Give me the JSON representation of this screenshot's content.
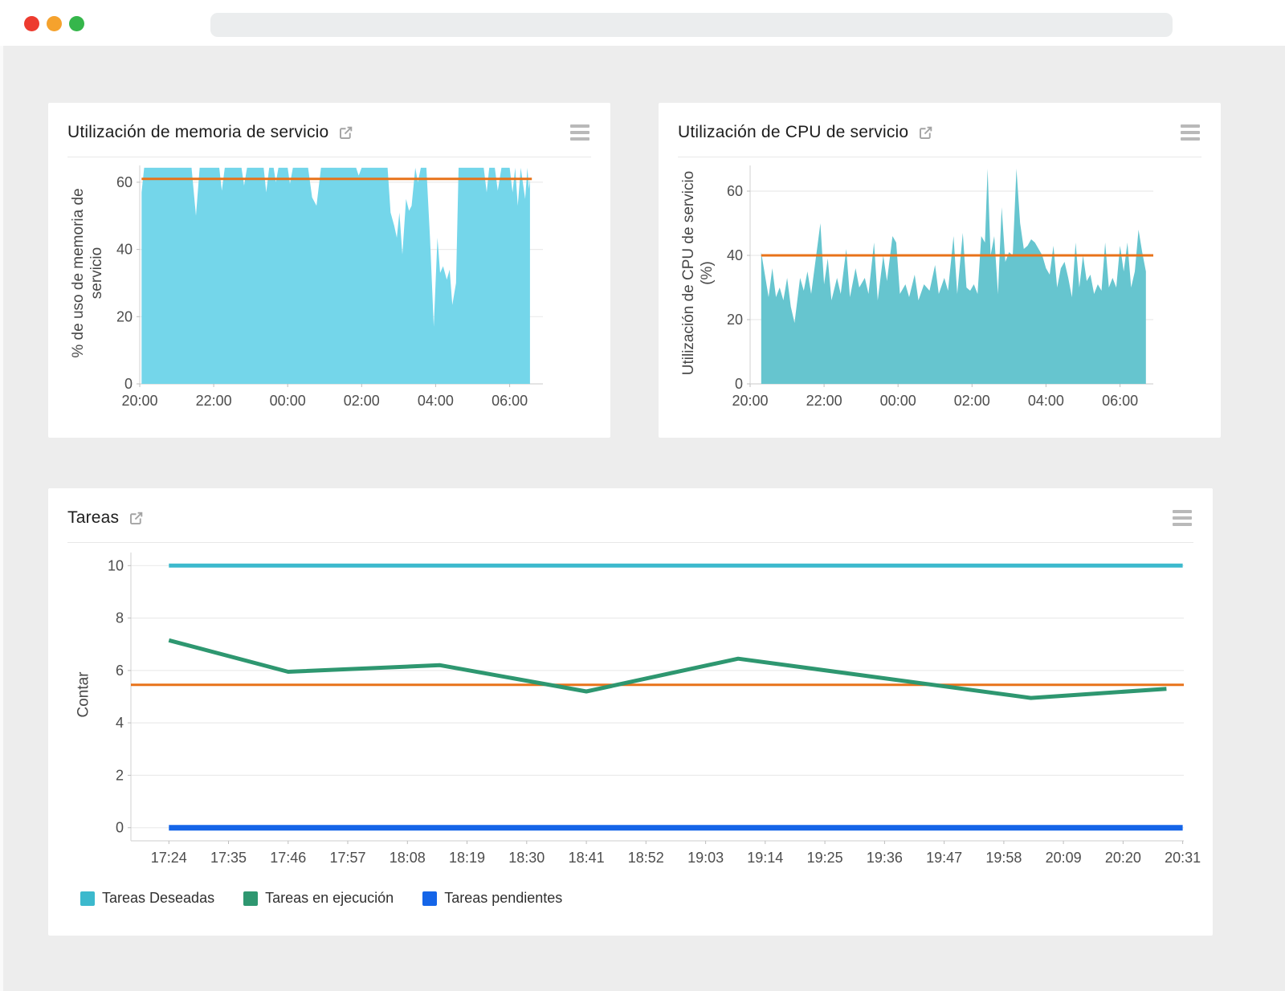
{
  "window": {
    "controls": [
      {
        "name": "close",
        "color": "#ed3b2f"
      },
      {
        "name": "minimize",
        "color": "#f5a22d"
      },
      {
        "name": "zoom",
        "color": "#35b64b"
      }
    ],
    "address_bar_text": ""
  },
  "colors": {
    "page_background": "#ededed",
    "card_background": "#ffffff",
    "threshold_orange": "#e8731a",
    "memory_area_fill": "#74d6ea",
    "cpu_area_fill": "#66c5cf",
    "tareas_deseadas_cyan": "#3cb9cd",
    "tareas_ejecucion_green": "#2e9770",
    "tareas_pendientes_blue": "#1565e8",
    "tick_text": "#4d4d4d",
    "grid_line": "#ebebeb",
    "axis_line": "#d8d8d8"
  },
  "chart_data": [
    {
      "id": "memory",
      "type": "area",
      "title": "Utilización de memoria de servicio",
      "ylabel": "% de uso de memoria de servicio",
      "xlabel": "",
      "x_unit": "hours after 20:00",
      "x_ticks": [
        "20:00",
        "22:00",
        "00:00",
        "02:00",
        "04:00",
        "06:00"
      ],
      "x_tick_values": [
        0,
        2,
        4,
        6,
        8,
        10
      ],
      "x_range": [
        0,
        10.9
      ],
      "y_ticks": [
        0,
        20,
        40,
        60
      ],
      "ylim": [
        0,
        65
      ],
      "grid": true,
      "threshold": 61,
      "threshold_color": "#e8731a",
      "threshold_range": [
        0.05,
        10.6
      ],
      "fill_color": "#74d6ea",
      "series": [
        {
          "points": [
            [
              0.05,
              57
            ],
            [
              0.12,
              64.3
            ],
            [
              1.4,
              64.3
            ],
            [
              1.52,
              50
            ],
            [
              1.62,
              64.3
            ],
            [
              2.15,
              64.3
            ],
            [
              2.22,
              57.5
            ],
            [
              2.3,
              64.3
            ],
            [
              2.75,
              64.3
            ],
            [
              2.82,
              59
            ],
            [
              2.9,
              64.3
            ],
            [
              3.35,
              64.3
            ],
            [
              3.42,
              57
            ],
            [
              3.5,
              64.3
            ],
            [
              3.62,
              64.3
            ],
            [
              3.68,
              60
            ],
            [
              3.75,
              64.3
            ],
            [
              4.0,
              64.3
            ],
            [
              4.06,
              59.5
            ],
            [
              4.14,
              64.3
            ],
            [
              4.55,
              64.3
            ],
            [
              4.66,
              55.5
            ],
            [
              4.78,
              53
            ],
            [
              4.9,
              64.3
            ],
            [
              5.85,
              64.3
            ],
            [
              5.92,
              62
            ],
            [
              6.0,
              64.3
            ],
            [
              6.7,
              64.3
            ],
            [
              6.78,
              51
            ],
            [
              6.88,
              47
            ],
            [
              6.95,
              43.5
            ],
            [
              7.02,
              51
            ],
            [
              7.1,
              38.5
            ],
            [
              7.2,
              55
            ],
            [
              7.28,
              51.5
            ],
            [
              7.35,
              53
            ],
            [
              7.45,
              64.3
            ],
            [
              7.52,
              60
            ],
            [
              7.6,
              64.3
            ],
            [
              7.75,
              64.3
            ],
            [
              7.85,
              43
            ],
            [
              7.95,
              17
            ],
            [
              8.05,
              43.5
            ],
            [
              8.12,
              33
            ],
            [
              8.2,
              35
            ],
            [
              8.3,
              31
            ],
            [
              8.38,
              34
            ],
            [
              8.45,
              23.5
            ],
            [
              8.55,
              30
            ],
            [
              8.62,
              64.3
            ],
            [
              9.3,
              64.3
            ],
            [
              9.38,
              57
            ],
            [
              9.45,
              64.3
            ],
            [
              9.6,
              64.3
            ],
            [
              9.68,
              57.5
            ],
            [
              9.78,
              64.3
            ],
            [
              10.0,
              64.3
            ],
            [
              10.08,
              57
            ],
            [
              10.15,
              64.3
            ],
            [
              10.22,
              53
            ],
            [
              10.3,
              64.3
            ],
            [
              10.42,
              55
            ],
            [
              10.48,
              64.3
            ],
            [
              10.52,
              58
            ],
            [
              10.55,
              61
            ]
          ]
        }
      ]
    },
    {
      "id": "cpu",
      "type": "area",
      "title": "Utilización de CPU de servicio",
      "ylabel": "Utilización de CPU de servicio (%)",
      "xlabel": "",
      "x_unit": "hours after 20:00",
      "x_ticks": [
        "20:00",
        "22:00",
        "00:00",
        "02:00",
        "04:00",
        "06:00"
      ],
      "x_tick_values": [
        0,
        2,
        4,
        6,
        8,
        10
      ],
      "x_range": [
        0,
        10.9
      ],
      "y_ticks": [
        0,
        20,
        40,
        60
      ],
      "ylim": [
        0,
        68
      ],
      "grid": true,
      "threshold": 40,
      "threshold_color": "#e8731a",
      "threshold_range": [
        0.3,
        10.9
      ],
      "fill_color": "#66c5cf",
      "series": [
        {
          "points": [
            [
              0.3,
              41
            ],
            [
              0.4,
              34
            ],
            [
              0.5,
              27
            ],
            [
              0.6,
              36
            ],
            [
              0.7,
              27
            ],
            [
              0.8,
              30
            ],
            [
              0.9,
              26
            ],
            [
              1.0,
              33
            ],
            [
              1.1,
              24
            ],
            [
              1.2,
              19
            ],
            [
              1.35,
              33
            ],
            [
              1.45,
              29
            ],
            [
              1.55,
              35
            ],
            [
              1.65,
              28
            ],
            [
              1.9,
              50
            ],
            [
              2.0,
              31
            ],
            [
              2.1,
              39
            ],
            [
              2.2,
              26
            ],
            [
              2.35,
              33
            ],
            [
              2.45,
              28
            ],
            [
              2.6,
              42
            ],
            [
              2.7,
              27
            ],
            [
              2.85,
              36
            ],
            [
              2.95,
              30
            ],
            [
              3.1,
              33
            ],
            [
              3.2,
              28
            ],
            [
              3.35,
              44
            ],
            [
              3.45,
              26
            ],
            [
              3.6,
              40
            ],
            [
              3.7,
              32
            ],
            [
              3.85,
              46
            ],
            [
              3.95,
              44
            ],
            [
              4.05,
              28
            ],
            [
              4.2,
              31
            ],
            [
              4.3,
              27
            ],
            [
              4.45,
              34
            ],
            [
              4.55,
              26
            ],
            [
              4.7,
              31
            ],
            [
              4.85,
              29
            ],
            [
              5.0,
              37
            ],
            [
              5.1,
              28
            ],
            [
              5.25,
              33
            ],
            [
              5.35,
              29
            ],
            [
              5.5,
              46
            ],
            [
              5.6,
              28
            ],
            [
              5.75,
              47
            ],
            [
              5.85,
              30
            ],
            [
              5.95,
              29
            ],
            [
              6.05,
              31
            ],
            [
              6.15,
              28
            ],
            [
              6.25,
              46
            ],
            [
              6.35,
              44
            ],
            [
              6.42,
              67
            ],
            [
              6.5,
              40
            ],
            [
              6.6,
              46
            ],
            [
              6.7,
              28
            ],
            [
              6.8,
              55
            ],
            [
              6.9,
              38
            ],
            [
              7.0,
              41
            ],
            [
              7.1,
              40
            ],
            [
              7.2,
              67
            ],
            [
              7.3,
              50
            ],
            [
              7.4,
              42
            ],
            [
              7.5,
              43
            ],
            [
              7.6,
              45
            ],
            [
              7.7,
              44
            ],
            [
              7.8,
              42
            ],
            [
              7.9,
              40
            ],
            [
              8.0,
              36
            ],
            [
              8.1,
              34
            ],
            [
              8.2,
              43
            ],
            [
              8.3,
              30
            ],
            [
              8.4,
              36
            ],
            [
              8.5,
              38
            ],
            [
              8.6,
              33
            ],
            [
              8.7,
              27
            ],
            [
              8.8,
              44
            ],
            [
              8.9,
              30
            ],
            [
              9.0,
              40
            ],
            [
              9.1,
              32
            ],
            [
              9.2,
              34
            ],
            [
              9.3,
              28
            ],
            [
              9.4,
              31
            ],
            [
              9.5,
              29
            ],
            [
              9.6,
              44
            ],
            [
              9.7,
              30
            ],
            [
              9.8,
              33
            ],
            [
              9.9,
              30
            ],
            [
              10.0,
              43
            ],
            [
              10.1,
              35
            ],
            [
              10.2,
              44
            ],
            [
              10.3,
              30
            ],
            [
              10.4,
              35
            ],
            [
              10.5,
              48
            ],
            [
              10.6,
              41
            ],
            [
              10.7,
              35
            ]
          ]
        }
      ]
    },
    {
      "id": "tareas",
      "type": "line",
      "title": "Tareas",
      "ylabel": "Contar",
      "xlabel": "",
      "x_unit": "minutes after 17:24",
      "x_ticks": [
        "17:24",
        "17:35",
        "17:46",
        "17:57",
        "18:08",
        "18:19",
        "18:30",
        "18:41",
        "18:52",
        "19:03",
        "19:14",
        "19:25",
        "19:36",
        "19:47",
        "19:58",
        "20:09",
        "20:20",
        "20:31"
      ],
      "x_tick_values": [
        0,
        11,
        22,
        33,
        44,
        55,
        66,
        77,
        88,
        99,
        110,
        121,
        132,
        143,
        154,
        165,
        176,
        187
      ],
      "x_range": [
        -7,
        187.2
      ],
      "y_ticks": [
        0,
        2,
        4,
        6,
        8,
        10
      ],
      "ylim": [
        -0.5,
        10.5
      ],
      "grid": true,
      "threshold": 5.45,
      "threshold_color": "#e8731a",
      "threshold_range": [
        -7,
        187.2
      ],
      "legend_position": "bottom-left",
      "series": [
        {
          "name": "Tareas Deseadas",
          "color": "#3cb9cd",
          "width": 5,
          "points": [
            [
              0,
              10
            ],
            [
              187,
              10
            ]
          ]
        },
        {
          "name": "Tareas en ejecución",
          "color": "#2e9770",
          "width": 5,
          "points": [
            [
              0,
              7.15
            ],
            [
              22,
              5.95
            ],
            [
              50,
              6.2
            ],
            [
              77,
              5.2
            ],
            [
              105,
              6.45
            ],
            [
              159,
              4.95
            ],
            [
              184,
              5.3
            ]
          ]
        },
        {
          "name": "Tareas pendientes",
          "color": "#1565e8",
          "width": 7,
          "points": [
            [
              0,
              0
            ],
            [
              187,
              0
            ]
          ]
        }
      ]
    }
  ]
}
